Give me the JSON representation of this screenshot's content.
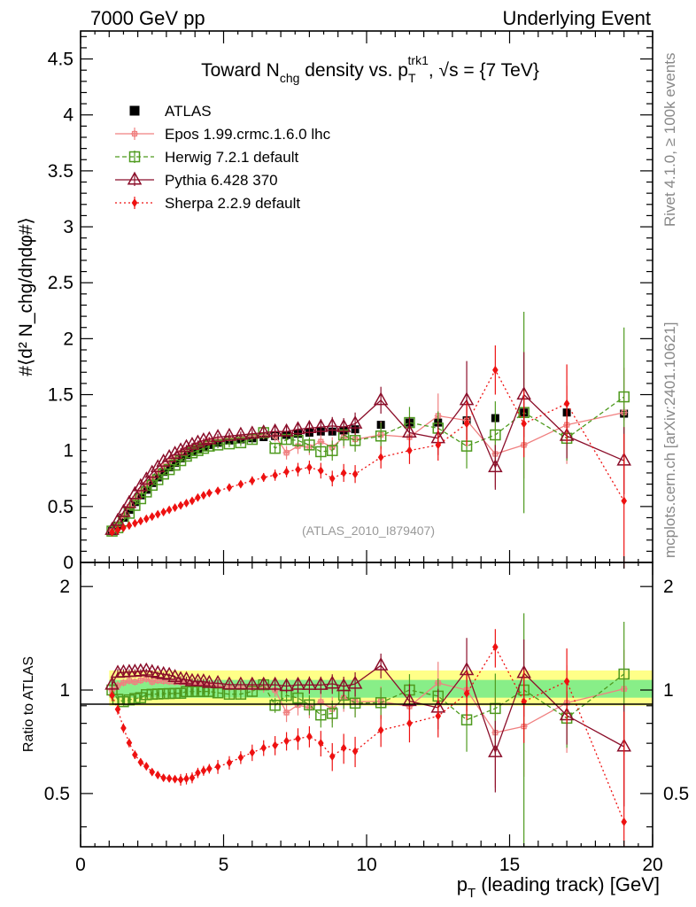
{
  "header": {
    "left": "7000 GeV pp",
    "right": "Underlying Event"
  },
  "side_labels": {
    "rivet": "Rivet 4.1.0, ≥ 100k events",
    "mcplots": "mcplots.cern.ch [arXiv:2401.10621]"
  },
  "analysis_tag": "(ATLAS_2010_I879407)",
  "chart_data": {
    "type": "scatter",
    "title": "Toward N_chg density vs. p_T^trk1, √s = {7 TeV}",
    "title_parts": {
      "pre": "Toward N",
      "sub1": "chg",
      "mid": " density vs. p",
      "sub2": "T",
      "sup2": "trk1",
      "post": ", √s = {7 TeV}"
    },
    "xlabel": "p_T (leading track) [GeV]",
    "xlabel_parts": {
      "pre": "p",
      "sub": "T",
      "post": " (leading track) [GeV]"
    },
    "ylabel": "#⟨d² N_chg/dηdφ#⟩",
    "ylabel_ratio": "Ratio to ATLAS",
    "xlim": [
      0,
      20
    ],
    "ylim": [
      0,
      4.75
    ],
    "ylim_ratio": [
      0.35,
      2.35
    ],
    "x_ticks": [
      "0",
      "5",
      "10",
      "15",
      "20"
    ],
    "y_ticks": [
      "0",
      "0.5",
      "1",
      "1.5",
      "2",
      "2.5",
      "3",
      "3.5",
      "4",
      "4.5"
    ],
    "y_ticks_ratio": [
      "0.5",
      "1",
      "2"
    ],
    "x": [
      1.1,
      1.3,
      1.5,
      1.7,
      1.9,
      2.1,
      2.3,
      2.5,
      2.7,
      2.9,
      3.1,
      3.3,
      3.5,
      3.7,
      3.9,
      4.1,
      4.3,
      4.5,
      4.8,
      5.2,
      5.6,
      6.0,
      6.4,
      6.8,
      7.2,
      7.6,
      8.0,
      8.4,
      8.8,
      9.2,
      9.6,
      10.5,
      11.5,
      12.5,
      13.5,
      14.5,
      15.5,
      17.0,
      19.0
    ],
    "legend_position": "top-left",
    "series": [
      {
        "name": "ATLAS",
        "color": "#000000",
        "values": [
          0.28,
          0.33,
          0.4,
          0.47,
          0.54,
          0.6,
          0.65,
          0.71,
          0.76,
          0.81,
          0.85,
          0.89,
          0.93,
          0.96,
          0.99,
          1.01,
          1.03,
          1.05,
          1.07,
          1.09,
          1.1,
          1.11,
          1.12,
          1.13,
          1.14,
          1.15,
          1.16,
          1.17,
          1.17,
          1.18,
          1.19,
          1.23,
          1.25,
          1.25,
          1.27,
          1.29,
          1.34,
          1.34,
          1.33
        ],
        "errors": [
          0.01,
          0.01,
          0.01,
          0.01,
          0.01,
          0.01,
          0.01,
          0.01,
          0.01,
          0.01,
          0.01,
          0.01,
          0.01,
          0.01,
          0.01,
          0.01,
          0.01,
          0.01,
          0.01,
          0.01,
          0.01,
          0.01,
          0.01,
          0.01,
          0.02,
          0.02,
          0.02,
          0.02,
          0.02,
          0.02,
          0.03,
          0.03,
          0.03,
          0.03,
          0.04,
          0.04,
          0.05,
          0.05,
          0.06
        ]
      },
      {
        "name": "Epos 1.99.crmc.1.6.0 lhc",
        "color": "#f08080",
        "values": [
          0.28,
          0.34,
          0.42,
          0.5,
          0.57,
          0.64,
          0.7,
          0.75,
          0.81,
          0.86,
          0.9,
          0.94,
          0.98,
          1.01,
          1.03,
          1.05,
          1.07,
          1.09,
          1.1,
          1.11,
          1.12,
          1.13,
          1.14,
          1.13,
          0.98,
          1.04,
          1.03,
          1.08,
          1.03,
          1.12,
          1.1,
          1.14,
          1.12,
          1.31,
          1.27,
          0.97,
          1.05,
          1.23,
          1.34
        ],
        "errors": [
          0.01,
          0.01,
          0.01,
          0.01,
          0.01,
          0.01,
          0.01,
          0.01,
          0.01,
          0.01,
          0.01,
          0.01,
          0.02,
          0.02,
          0.02,
          0.02,
          0.02,
          0.02,
          0.03,
          0.03,
          0.03,
          0.04,
          0.04,
          0.05,
          0.06,
          0.07,
          0.07,
          0.08,
          0.09,
          0.1,
          0.1,
          0.12,
          0.14,
          0.2,
          0.25,
          0.3,
          0.3,
          0.35,
          0.4
        ]
      },
      {
        "name": "Herwig 7.2.1 default",
        "color": "#4e9a1e",
        "values": [
          0.28,
          0.31,
          0.37,
          0.44,
          0.51,
          0.57,
          0.63,
          0.69,
          0.74,
          0.79,
          0.83,
          0.87,
          0.91,
          0.95,
          0.98,
          1.0,
          1.02,
          1.04,
          1.05,
          1.06,
          1.07,
          1.1,
          1.16,
          1.02,
          1.1,
          1.09,
          1.05,
          0.99,
          1.0,
          1.14,
          1.09,
          1.13,
          1.25,
          1.2,
          1.04,
          1.14,
          1.34,
          1.11,
          1.48
        ],
        "errors": [
          0.01,
          0.01,
          0.01,
          0.01,
          0.01,
          0.01,
          0.01,
          0.01,
          0.01,
          0.01,
          0.01,
          0.01,
          0.02,
          0.02,
          0.02,
          0.02,
          0.02,
          0.02,
          0.03,
          0.03,
          0.03,
          0.04,
          0.04,
          0.05,
          0.05,
          0.06,
          0.07,
          0.08,
          0.09,
          0.1,
          0.1,
          0.12,
          0.14,
          0.15,
          0.2,
          0.3,
          0.9,
          0.2,
          0.62
        ]
      },
      {
        "name": "Pythia 6.428 370",
        "color": "#8b0e2a",
        "values": [
          0.29,
          0.37,
          0.45,
          0.53,
          0.61,
          0.68,
          0.74,
          0.8,
          0.85,
          0.9,
          0.94,
          0.97,
          1.0,
          1.03,
          1.05,
          1.07,
          1.09,
          1.1,
          1.12,
          1.13,
          1.14,
          1.15,
          1.16,
          1.17,
          1.17,
          1.19,
          1.2,
          1.21,
          1.22,
          1.21,
          1.24,
          1.45,
          1.16,
          1.11,
          1.45,
          0.85,
          1.5,
          1.13,
          0.91
        ],
        "errors": [
          0.01,
          0.01,
          0.01,
          0.01,
          0.01,
          0.01,
          0.01,
          0.01,
          0.01,
          0.01,
          0.01,
          0.01,
          0.02,
          0.02,
          0.02,
          0.02,
          0.02,
          0.02,
          0.03,
          0.03,
          0.03,
          0.04,
          0.04,
          0.05,
          0.05,
          0.06,
          0.07,
          0.07,
          0.08,
          0.08,
          0.1,
          0.12,
          0.14,
          0.15,
          0.35,
          0.2,
          0.38,
          0.2,
          0.3
        ]
      },
      {
        "name": "Sherpa 2.2.9 default",
        "color": "#ee1111",
        "values": [
          0.27,
          0.29,
          0.31,
          0.33,
          0.35,
          0.37,
          0.39,
          0.41,
          0.43,
          0.45,
          0.47,
          0.49,
          0.51,
          0.53,
          0.55,
          0.58,
          0.6,
          0.62,
          0.64,
          0.67,
          0.7,
          0.73,
          0.76,
          0.78,
          0.81,
          0.83,
          0.85,
          0.82,
          0.75,
          0.8,
          0.79,
          0.94,
          1.0,
          1.05,
          1.24,
          1.72,
          1.24,
          1.42,
          0.55
        ],
        "errors": [
          0.01,
          0.01,
          0.01,
          0.01,
          0.01,
          0.01,
          0.01,
          0.01,
          0.01,
          0.01,
          0.01,
          0.01,
          0.02,
          0.02,
          0.02,
          0.02,
          0.02,
          0.02,
          0.03,
          0.03,
          0.03,
          0.04,
          0.04,
          0.05,
          0.05,
          0.06,
          0.06,
          0.07,
          0.07,
          0.08,
          0.08,
          0.1,
          0.12,
          0.14,
          0.2,
          0.22,
          0.3,
          0.35,
          0.6
        ]
      }
    ]
  }
}
